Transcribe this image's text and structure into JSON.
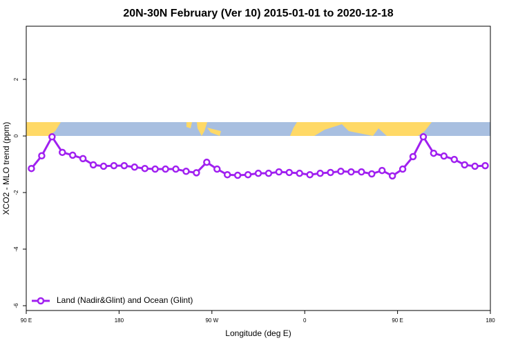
{
  "chart_data": {
    "type": "line",
    "title": "20N-30N February (Ver 10)   2015-01-01 to 2020-12-18",
    "x_label": "Longitude (deg E)",
    "y_label": "XCO2 - MLO trend (ppm)",
    "x": [
      95,
      105,
      115,
      125,
      135,
      145,
      155,
      165,
      175,
      185,
      195,
      205,
      215,
      225,
      235,
      245,
      255,
      265,
      275,
      285,
      295,
      305,
      315,
      325,
      335,
      345,
      355,
      365,
      375,
      385,
      395,
      405,
      415,
      425,
      435,
      445,
      455,
      465,
      475,
      485,
      495,
      505,
      515,
      525,
      535
    ],
    "series": [
      {
        "name": "Land (Nadir&Glint) and Ocean (Glint)",
        "color": "#a020f0",
        "values": [
          -1.15,
          -0.7,
          -0.03,
          -0.58,
          -0.68,
          -0.8,
          -1.02,
          -1.07,
          -1.05,
          -1.05,
          -1.1,
          -1.15,
          -1.17,
          -1.17,
          -1.17,
          -1.25,
          -1.3,
          -0.93,
          -1.17,
          -1.37,
          -1.39,
          -1.37,
          -1.32,
          -1.32,
          -1.27,
          -1.29,
          -1.32,
          -1.37,
          -1.32,
          -1.29,
          -1.25,
          -1.27,
          -1.27,
          -1.34,
          -1.22,
          -1.41,
          -1.17,
          -0.73,
          -0.03,
          -0.61,
          -0.71,
          -0.83,
          -1.02,
          -1.07,
          -1.05
        ]
      }
    ],
    "xlim": [
      90,
      540
    ],
    "xticks": [
      {
        "value": 90,
        "label": "90 E"
      },
      {
        "value": 180,
        "label": "180"
      },
      {
        "value": 270,
        "label": "90 W"
      },
      {
        "value": 360,
        "label": "0"
      },
      {
        "value": 450,
        "label": "90 E"
      },
      {
        "value": 540,
        "label": "180"
      }
    ],
    "ylim": [
      -6.17,
      3.88
    ],
    "yticks": [
      -6,
      -4,
      -2,
      0,
      2
    ],
    "legend": "bottomleft"
  }
}
